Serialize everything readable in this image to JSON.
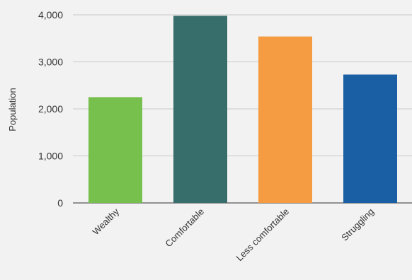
{
  "chart_data": {
    "type": "bar",
    "title": "",
    "xlabel": "",
    "ylabel": "Population",
    "ylim": [
      0,
      4000
    ],
    "yticks": [
      0,
      1000,
      2000,
      3000,
      4000
    ],
    "ytick_labels": [
      "0",
      "1,000",
      "2,000",
      "3,000",
      "4,000"
    ],
    "categories": [
      "Wealthy",
      "Comfortable",
      "Less comfortable",
      "Struggling"
    ],
    "values": [
      2250,
      3980,
      3540,
      2730
    ],
    "colors": [
      "#78c04e",
      "#376d6a",
      "#f59c42",
      "#1a5fa3"
    ],
    "grid": true,
    "legend": "none"
  }
}
